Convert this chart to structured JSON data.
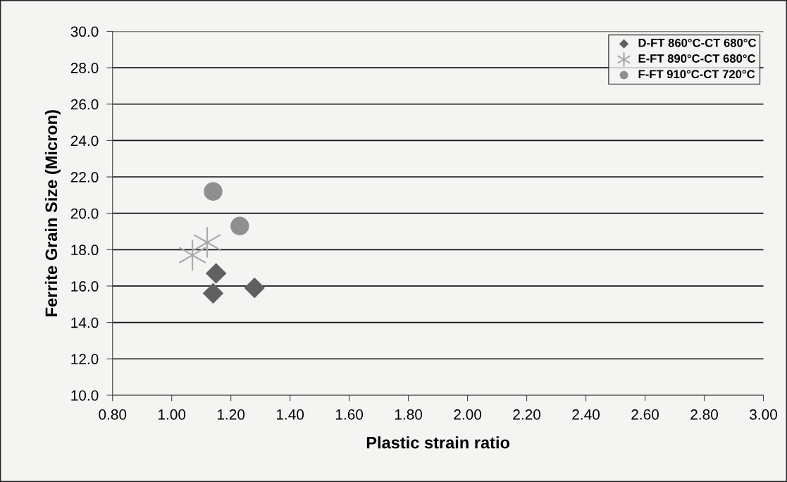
{
  "chart_data": {
    "type": "scatter",
    "xlabel": "Plastic strain ratio",
    "ylabel": "Ferrite Grain Size (Micron)",
    "xlim": [
      0.8,
      3.0
    ],
    "ylim": [
      10.0,
      30.0
    ],
    "xticks": [
      {
        "value": 0.8,
        "label": "0.80"
      },
      {
        "value": 1.0,
        "label": "1.00"
      },
      {
        "value": 1.2,
        "label": "1.20"
      },
      {
        "value": 1.4,
        "label": "1.40"
      },
      {
        "value": 1.6,
        "label": "1.60"
      },
      {
        "value": 1.8,
        "label": "1.80"
      },
      {
        "value": 2.0,
        "label": "2.00"
      },
      {
        "value": 2.2,
        "label": "2.20"
      },
      {
        "value": 2.4,
        "label": "2.40"
      },
      {
        "value": 2.6,
        "label": "2.60"
      },
      {
        "value": 2.8,
        "label": "2.80"
      },
      {
        "value": 3.0,
        "label": "3.00"
      }
    ],
    "yticks": [
      {
        "value": 10,
        "label": "10.0"
      },
      {
        "value": 12,
        "label": "12.0"
      },
      {
        "value": 14,
        "label": "14.0"
      },
      {
        "value": 16,
        "label": "16.0"
      },
      {
        "value": 18,
        "label": "18.0"
      },
      {
        "value": 20,
        "label": "20.0"
      },
      {
        "value": 22,
        "label": "22.0"
      },
      {
        "value": 24,
        "label": "24.0"
      },
      {
        "value": 26,
        "label": "26.0"
      },
      {
        "value": 28,
        "label": "28.0"
      },
      {
        "value": 30,
        "label": "30.0"
      }
    ],
    "grid": "y",
    "legend": "top right",
    "series": [
      {
        "name": "D-FT 860°C-CT 680°C",
        "color": "#606060",
        "marker": "diamond",
        "x": [
          1.15,
          1.14,
          1.28
        ],
        "values": [
          16.7,
          15.6,
          15.9
        ]
      },
      {
        "name": "E-FT 890°C-CT 680°C",
        "color": "#a8a8a8",
        "marker": "cross",
        "x": [
          1.12,
          1.07
        ],
        "values": [
          18.4,
          17.7
        ]
      },
      {
        "name": "F-FT 910°C-CT 720°C",
        "color": "#8f8f8f",
        "marker": "circle",
        "x": [
          1.14,
          1.23
        ],
        "values": [
          21.2,
          19.3
        ]
      }
    ]
  }
}
